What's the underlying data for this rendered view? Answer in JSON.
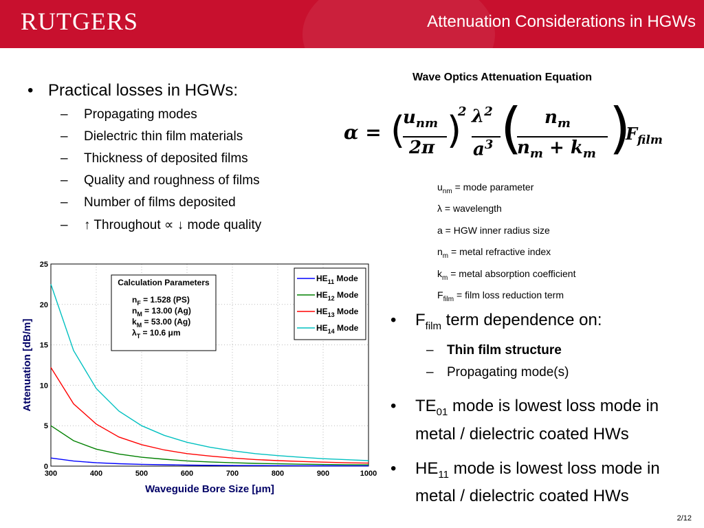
{
  "header": {
    "logo": "RUTGERS",
    "title": "Attenuation Considerations in HGWs",
    "bg_color": "#c8102e"
  },
  "left_bullets": {
    "main": "Practical losses in HGWs:",
    "items": [
      "Propagating modes",
      "Dielectric thin film materials",
      "Thickness of deposited films",
      "Quality and roughness of films",
      "Number of films deposited",
      "↑ Throughout ∝ ↓ mode quality"
    ]
  },
  "equation_title": "Wave Optics Attenuation Equation",
  "definitions": [
    {
      "sym": "u",
      "sub": "nm",
      "text": " = mode parameter"
    },
    {
      "sym": "λ",
      "sub": "",
      "text": " = wavelength"
    },
    {
      "sym": "a",
      "sub": "",
      "text": " = HGW inner radius size"
    },
    {
      "sym": "n",
      "sub": "m",
      "text": " = metal refractive index"
    },
    {
      "sym": "k",
      "sub": "m",
      "text": " = metal absorption coefficient"
    },
    {
      "sym": "F",
      "sub": "film",
      "text": " = film loss reduction term"
    }
  ],
  "right_bullets": {
    "b1": {
      "pre": "F",
      "sub": "film",
      "post": " term dependence on:"
    },
    "b1_items": [
      "Thin film structure",
      "Propagating mode(s)"
    ],
    "b2": {
      "pre": "TE",
      "sub": "01",
      "post": " mode is lowest loss mode in metal / dielectric coated HWs"
    },
    "b3": {
      "pre": "HE",
      "sub": "11",
      "post": " mode is lowest loss mode in metal / dielectric coated HWs"
    }
  },
  "page_number": "2/12",
  "chart_data": {
    "type": "line",
    "xlabel": "Waveguide Bore Size [μm]",
    "ylabel": "Attenuation [dB/m]",
    "xlim": [
      300,
      1000
    ],
    "ylim": [
      0,
      25
    ],
    "xticks": [
      300,
      400,
      500,
      600,
      700,
      800,
      900,
      1000
    ],
    "yticks": [
      0,
      5,
      10,
      15,
      20,
      25
    ],
    "grid": true,
    "legend": "top-right",
    "params_box": {
      "title": "Calculation Parameters",
      "lines": [
        {
          "pre": "n",
          "sub": "F",
          "post": " = 1.528 (PS)"
        },
        {
          "pre": "n",
          "sub": "M",
          "post": " = 13.00 (Ag)"
        },
        {
          "pre": "k",
          "sub": "M",
          "post": " = 53.00 (Ag)"
        },
        {
          "pre": "λ",
          "sub": "T",
          "post": " = 10.6 μm"
        }
      ]
    },
    "x": [
      300,
      350,
      400,
      450,
      500,
      550,
      600,
      650,
      700,
      750,
      800,
      850,
      900,
      950,
      1000
    ],
    "series": [
      {
        "name": "HE11 Mode",
        "base": "HE",
        "sub": "11",
        "color": "#0000ff",
        "values": [
          1.0,
          0.63,
          0.42,
          0.3,
          0.22,
          0.17,
          0.13,
          0.1,
          0.08,
          0.07,
          0.06,
          0.05,
          0.04,
          0.035,
          0.03
        ]
      },
      {
        "name": "HE12 Mode",
        "base": "HE",
        "sub": "12",
        "color": "#008000",
        "values": [
          5.0,
          3.15,
          2.1,
          1.5,
          1.1,
          0.85,
          0.65,
          0.52,
          0.42,
          0.34,
          0.29,
          0.24,
          0.2,
          0.18,
          0.16
        ]
      },
      {
        "name": "HE13 Mode",
        "base": "HE",
        "sub": "13",
        "color": "#ff0000",
        "values": [
          12.2,
          7.7,
          5.2,
          3.6,
          2.65,
          2.0,
          1.55,
          1.25,
          1.0,
          0.82,
          0.68,
          0.58,
          0.49,
          0.42,
          0.37
        ]
      },
      {
        "name": "HE14 Mode",
        "base": "HE",
        "sub": "14",
        "color": "#00c0c0",
        "values": [
          22.5,
          14.3,
          9.6,
          6.8,
          5.0,
          3.8,
          2.95,
          2.35,
          1.9,
          1.55,
          1.3,
          1.1,
          0.92,
          0.8,
          0.68
        ]
      }
    ]
  }
}
